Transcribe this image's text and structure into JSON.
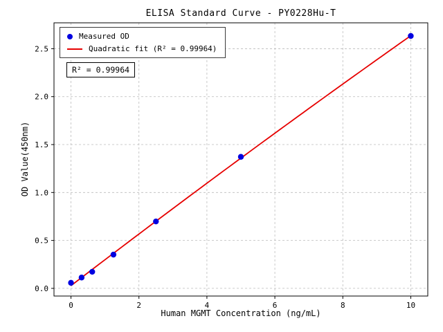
{
  "chart_data": {
    "type": "scatter",
    "title": "ELISA Standard Curve - PY0228Hu-T",
    "xlabel": "Human MGMT Concentration (ng/mL)",
    "ylabel": "OD Value(450nm)",
    "x": [
      0,
      0.3125,
      0.625,
      1.25,
      2.5,
      5,
      10
    ],
    "series": [
      {
        "name": "Measured OD",
        "type": "scatter",
        "color": "#0000e0",
        "values": [
          0.058,
          0.113,
          0.173,
          0.352,
          0.698,
          1.372,
          2.633
        ]
      },
      {
        "name": "Quadratic fit (R² = 0.99964)",
        "type": "line",
        "fit": "quadratic",
        "color": "#e60000"
      }
    ],
    "annotation": "R² = 0.99964",
    "r_squared": 0.99964,
    "xlim": [
      -0.5,
      10.5
    ],
    "ylim": [
      -0.08,
      2.77
    ],
    "xticks": {
      "values": [
        0,
        2,
        4,
        6,
        8,
        10
      ],
      "labels": [
        "0",
        "2",
        "4",
        "6",
        "8",
        "10"
      ]
    },
    "yticks": {
      "values": [
        0,
        0.5,
        1.0,
        1.5,
        2.0,
        2.5
      ],
      "labels": [
        "0.0",
        "0.5",
        "1.0",
        "1.5",
        "2.0",
        "2.5"
      ]
    },
    "grid": true,
    "legend_position": "upper-left",
    "colors": {
      "grid": "#bbbbbb",
      "axis": "#000000",
      "background": "#ffffff"
    }
  }
}
